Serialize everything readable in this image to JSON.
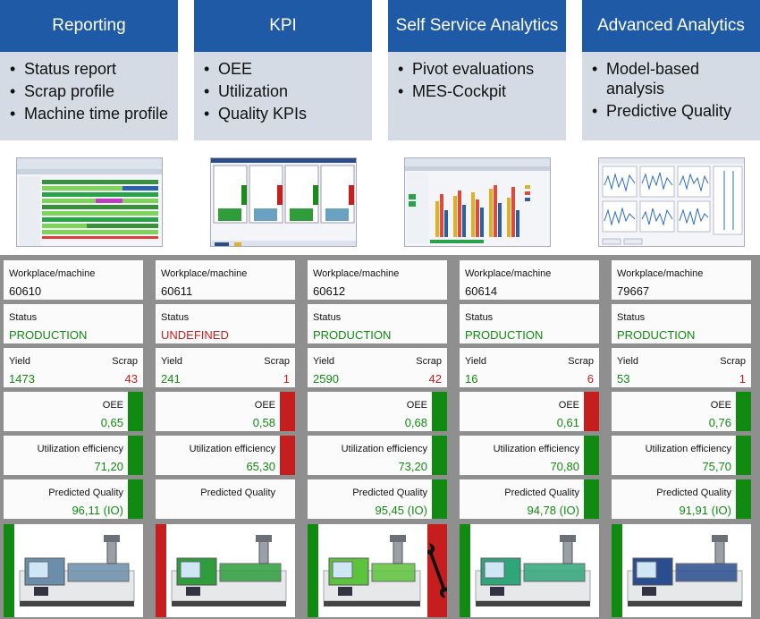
{
  "categories": [
    {
      "title": "Reporting",
      "items": [
        "Status report",
        "Scrap profile",
        "Machine time profile"
      ]
    },
    {
      "title": "KPI",
      "items": [
        "OEE",
        "Utilization",
        "Quality KPIs"
      ]
    },
    {
      "title": "Self Service Analytics",
      "items": [
        "Pivot evaluations",
        "MES-Cockpit"
      ]
    },
    {
      "title": "Advanced Analytics",
      "items": [
        "Model-based analysis",
        "Predictive Quality"
      ]
    }
  ],
  "labels": {
    "workplace": "Workplace/machine",
    "status": "Status",
    "yield": "Yield",
    "scrap": "Scrap",
    "oee": "OEE",
    "utilization": "Utilization efficiency",
    "predicted": "Predicted Quality"
  },
  "colors": {
    "header_blue": "#1f5aa6",
    "good_green": "#118a11",
    "bad_red": "#c61e1e",
    "grid_gray": "#8f8f8f"
  },
  "machines": [
    {
      "id": "60610",
      "status": "PRODUCTION",
      "status_state": "good",
      "yield": "1473",
      "scrap": "43",
      "oee": "0,65",
      "oee_state": "good",
      "util": "71,20",
      "util_state": "good",
      "pq": "96,11 (IO)",
      "pq_state": "good",
      "side_left": "good",
      "side_right": "none",
      "wrench": false,
      "machine_color": "#6b8faa"
    },
    {
      "id": "60611",
      "status": "UNDEFINED",
      "status_state": "bad",
      "yield": "241",
      "scrap": "1",
      "oee": "0,58",
      "oee_state": "bad",
      "util": "65,30",
      "util_state": "bad",
      "pq": "",
      "pq_state": "none",
      "side_left": "bad",
      "side_right": "none",
      "wrench": false,
      "machine_color": "#2e9e3c"
    },
    {
      "id": "60612",
      "status": "PRODUCTION",
      "status_state": "good",
      "yield": "2590",
      "scrap": "42",
      "oee": "0,68",
      "oee_state": "good",
      "util": "73,20",
      "util_state": "good",
      "pq": "95,45 (IO)",
      "pq_state": "good",
      "side_left": "good",
      "side_right": "bad",
      "wrench": true,
      "machine_color": "#5cc43a"
    },
    {
      "id": "60614",
      "status": "PRODUCTION",
      "status_state": "good",
      "yield": "16",
      "scrap": "6",
      "oee": "0,61",
      "oee_state": "bad",
      "util": "70,80",
      "util_state": "good",
      "pq": "94,78 (IO)",
      "pq_state": "good",
      "side_left": "good",
      "side_right": "none",
      "wrench": false,
      "machine_color": "#2fa67a"
    },
    {
      "id": "79667",
      "status": "PRODUCTION",
      "status_state": "good",
      "yield": "53",
      "scrap": "1",
      "oee": "0,76",
      "oee_state": "good",
      "util": "75,70",
      "util_state": "good",
      "pq": "91,91 (IO)",
      "pq_state": "good",
      "side_left": "good",
      "side_right": "none",
      "wrench": false,
      "machine_color": "#2a4d8f"
    }
  ]
}
